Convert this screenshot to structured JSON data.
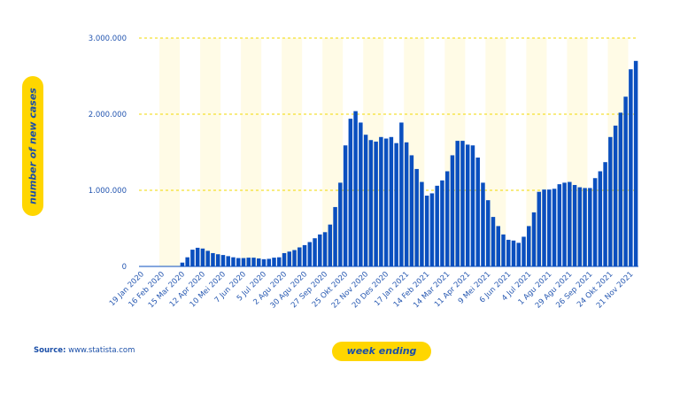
{
  "source": {
    "label": "Source:",
    "value": "www.statista.com"
  },
  "colors": {
    "bar": "#0a4fbf",
    "axis_text": "#2456b0",
    "gridline": "#f2d800",
    "band": "#fffbe6",
    "pill": "#ffd600"
  },
  "chart_data": {
    "type": "bar",
    "title": "",
    "xlabel": "week ending",
    "ylabel": "number of new cases",
    "ylim": [
      0,
      3000000
    ],
    "yticks": [
      0,
      1000000,
      2000000,
      3000000
    ],
    "ytick_labels": [
      "0",
      "1.000.000",
      "2.000.000",
      "3.000.000"
    ],
    "grid": true,
    "xtick_labels": [
      "19 Jan 2020",
      "16 Feb 2020",
      "15 Mar 2020",
      "12 Apr 2020",
      "10 Mei 2020",
      "7 Jun 2020",
      "5 Jul 2020",
      "2 Agu 2020",
      "30 Agu 2020",
      "27 Sep 2020",
      "25 Okt 2020",
      "22 Nov 2020",
      "20 Des 2020",
      "17 Jan 2021",
      "14 Feb 2021",
      "14 Mar 2021",
      "11 Apr 2021",
      "9 Mei 2021",
      "6 Jun 2021",
      "4 Jul 2021",
      "1 Agu 2021",
      "29 Agu 2021",
      "26 Sep 2021",
      "24 Okt 2021",
      "21 Nov 2021"
    ],
    "xtick_every": 4,
    "values": [
      500,
      1000,
      2000,
      2000,
      3000,
      3000,
      4000,
      5000,
      50000,
      120000,
      220000,
      245000,
      235000,
      205000,
      175000,
      160000,
      150000,
      135000,
      120000,
      110000,
      110000,
      115000,
      115000,
      105000,
      95000,
      100000,
      115000,
      120000,
      175000,
      195000,
      215000,
      250000,
      280000,
      320000,
      370000,
      420000,
      450000,
      550000,
      780000,
      1100000,
      1590000,
      1940000,
      2040000,
      1890000,
      1730000,
      1660000,
      1640000,
      1700000,
      1680000,
      1700000,
      1620000,
      1890000,
      1630000,
      1460000,
      1280000,
      1110000,
      930000,
      960000,
      1060000,
      1130000,
      1250000,
      1460000,
      1650000,
      1650000,
      1600000,
      1590000,
      1430000,
      1100000,
      870000,
      650000,
      530000,
      420000,
      350000,
      340000,
      310000,
      390000,
      530000,
      710000,
      980000,
      1010000,
      1010000,
      1020000,
      1080000,
      1100000,
      1110000,
      1070000,
      1040000,
      1030000,
      1030000,
      1160000,
      1250000,
      1370000,
      1700000,
      1850000,
      2020000,
      2230000,
      2590000,
      2700000
    ]
  }
}
